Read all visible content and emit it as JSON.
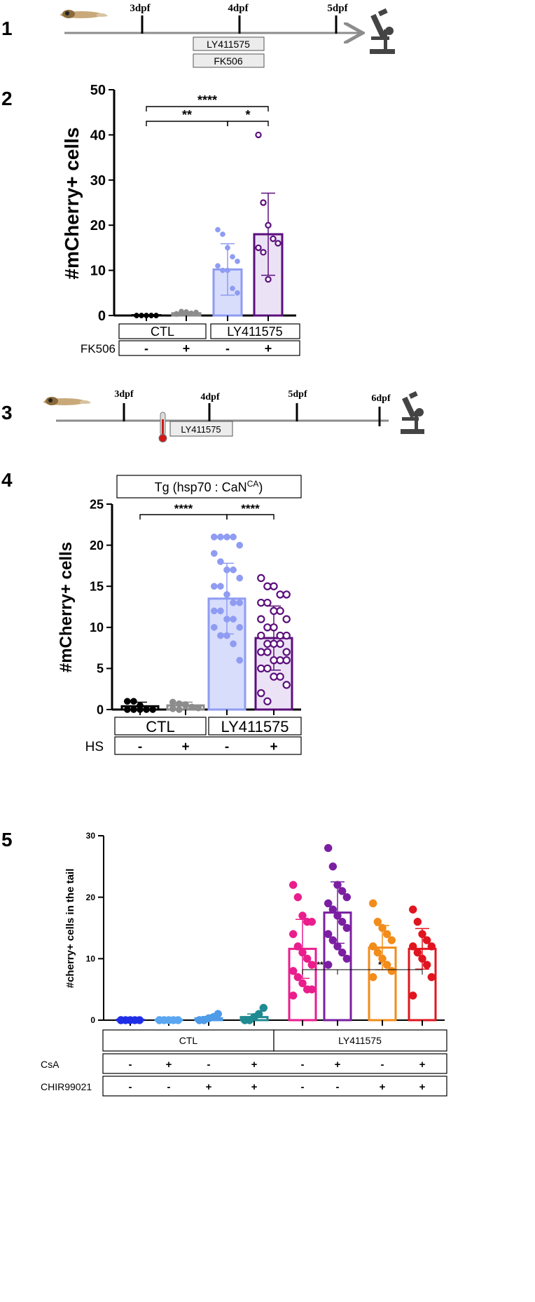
{
  "panels": {
    "p1": {
      "number": "1",
      "timepoints": [
        "3dpf",
        "4dpf",
        "5dpf"
      ],
      "boxes": [
        "LY411575",
        "FK506"
      ]
    },
    "p3": {
      "number": "3",
      "timepoints": [
        "3dpf",
        "4dpf",
        "5dpf",
        "6dpf"
      ],
      "boxes": [
        "LY411575"
      ]
    }
  },
  "chart_data": [
    {
      "panel": "2",
      "type": "bar",
      "ylabel": "#mCherry+ cells",
      "ylim": [
        0,
        50
      ],
      "yticks": [
        0,
        10,
        20,
        30,
        40,
        50
      ],
      "groups": [
        "CTL",
        "LY411575"
      ],
      "factors": [
        {
          "name": "FK506",
          "levels": [
            "-",
            "+",
            "-",
            "+"
          ]
        }
      ],
      "bar_colors": [
        "#000000",
        "#8c8c8c",
        "#8f9cf2",
        "#5b0f7c"
      ],
      "fill_colors": [
        "none",
        "none",
        "#d7ddfb",
        "#ece2f5"
      ],
      "marker_fill": [
        "filled",
        "filled",
        "filled",
        "open"
      ],
      "values": [
        0,
        0.5,
        10.2,
        18
      ],
      "sd": [
        0.2,
        0.3,
        5.7,
        9.1
      ],
      "points": [
        [
          0,
          0,
          0,
          0,
          0,
          0,
          0,
          0,
          0,
          0
        ],
        [
          0.4,
          0.6,
          0.8,
          0.5,
          0.7,
          0.3,
          0.9,
          0.6
        ],
        [
          19,
          18,
          15,
          13,
          12,
          11,
          10,
          10,
          6,
          5
        ],
        [
          40,
          25,
          20,
          17,
          16,
          15,
          14,
          8
        ]
      ],
      "significance": [
        {
          "a": 0,
          "b": 3,
          "label": "****"
        },
        {
          "a": 0,
          "b": 2,
          "label": "**"
        },
        {
          "a": 2,
          "b": 3,
          "label": "*"
        }
      ]
    },
    {
      "panel": "4",
      "type": "bar",
      "title": "Tg (hsp70 : CaN",
      "title_sup": "CA",
      "title_end": ")",
      "ylabel": "#mCherry+ cells",
      "ylim": [
        0,
        25
      ],
      "yticks": [
        0,
        5,
        10,
        15,
        20,
        25
      ],
      "groups": [
        "CTL",
        "LY411575"
      ],
      "factors": [
        {
          "name": "HS",
          "levels": [
            "-",
            "+",
            "-",
            "+"
          ]
        }
      ],
      "bar_colors": [
        "#000000",
        "#8c8c8c",
        "#8f9cf2",
        "#5b0f7c"
      ],
      "fill_colors": [
        "none",
        "none",
        "#d7ddfb",
        "#ece2f5"
      ],
      "marker_fill": [
        "filled",
        "filled",
        "filled",
        "open"
      ],
      "values": [
        0.4,
        0.5,
        13.5,
        8.7
      ],
      "sd": [
        0.5,
        0.4,
        4.3,
        3.9
      ],
      "points": [
        [
          1,
          1,
          0.5,
          0,
          0,
          0,
          0,
          0
        ],
        [
          0.9,
          0.7,
          0.5,
          0.3,
          0.2,
          0.1,
          0,
          0.6
        ],
        [
          21,
          21,
          21,
          21,
          20,
          19,
          18,
          17,
          17,
          16,
          15,
          15,
          14,
          13,
          13,
          12,
          12,
          11,
          11,
          10,
          10,
          9,
          9,
          8,
          6
        ],
        [
          16,
          15,
          15,
          14,
          14,
          13,
          13,
          12,
          12,
          11,
          11,
          10,
          10,
          9,
          9,
          9,
          8,
          8,
          8,
          7,
          7,
          7,
          6,
          6,
          6,
          5,
          5,
          4,
          4,
          3,
          2,
          1
        ]
      ],
      "significance": [
        {
          "a": 0,
          "b": 2,
          "label": "****"
        },
        {
          "a": 2,
          "b": 3,
          "label": "****"
        }
      ]
    },
    {
      "panel": "5",
      "type": "bar",
      "ylabel": "#cherry+ cells in the tail",
      "ylim": [
        0,
        30
      ],
      "yticks": [
        0,
        10,
        20,
        30
      ],
      "groups": [
        "CTL",
        "LY411575"
      ],
      "factors": [
        {
          "name": "CsA",
          "levels": [
            "-",
            "+",
            "-",
            "+",
            "-",
            "+",
            "-",
            "+"
          ]
        },
        {
          "name": "CHIR99021",
          "levels": [
            "-",
            "-",
            "+",
            "+",
            "-",
            "-",
            "+",
            "+"
          ]
        }
      ],
      "bar_colors": [
        "#1f2ee6",
        "#5aa6f0",
        "#4e9be8",
        "#1f8a92",
        "#e91e8c",
        "#7b1fa2",
        "#f28c1a",
        "#e0151f"
      ],
      "values": [
        0,
        0,
        0.3,
        0.5,
        11.6,
        17.5,
        11.8,
        11.6
      ],
      "sd": [
        0,
        0,
        0.3,
        0.5,
        4.8,
        5,
        3.6,
        3.3
      ],
      "points": [
        [
          0,
          0,
          0,
          0,
          0,
          0
        ],
        [
          0,
          0,
          0,
          0,
          0,
          0
        ],
        [
          0,
          0,
          0.3,
          0.5,
          1,
          0,
          0
        ],
        [
          0,
          0,
          0.5,
          1,
          2,
          0,
          0
        ],
        [
          22,
          20,
          17,
          16,
          16,
          14,
          12,
          11,
          10,
          9,
          8,
          7,
          6,
          5,
          5,
          4
        ],
        [
          28,
          25,
          22,
          21,
          20,
          19,
          18,
          17,
          16,
          15,
          14,
          13,
          12,
          11,
          10,
          9
        ],
        [
          19,
          16,
          15,
          14,
          13,
          12,
          11,
          10,
          9,
          8,
          7
        ],
        [
          18,
          16,
          14,
          13,
          12,
          12,
          11,
          10,
          9,
          7,
          4
        ]
      ],
      "significance": [
        {
          "a": 4,
          "b": 5,
          "label": "**"
        },
        {
          "a": 5,
          "b": 7,
          "label": "*"
        }
      ]
    }
  ]
}
